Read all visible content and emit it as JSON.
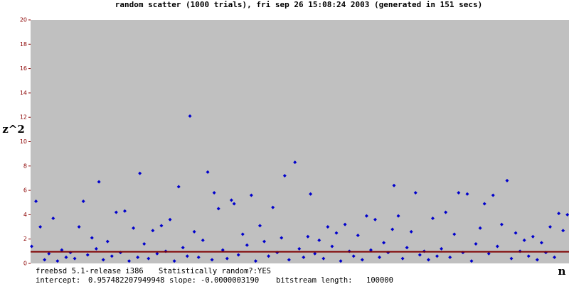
{
  "chart_data": {
    "type": "scatter",
    "title": "random scatter (1000 trials), fri sep 26 15:08:24 2003 (generated in 151 secs)",
    "y_label": "z^2",
    "x_label": "n",
    "xlim": [
      0,
      1000
    ],
    "ylim": [
      0,
      20
    ],
    "yticks": [
      0,
      2,
      4,
      6,
      8,
      10,
      12,
      14,
      16,
      18,
      20
    ],
    "plot_background": "#c0c0c0",
    "series": [
      {
        "color": "#0000cc",
        "x": [
          2,
          10,
          18,
          26,
          34,
          42,
          50,
          58,
          66,
          74,
          82,
          90,
          98,
          106,
          114,
          122,
          127,
          135,
          143,
          151,
          159,
          167,
          175,
          183,
          191,
          199,
          203,
          211,
          219,
          227,
          235,
          243,
          251,
          259,
          267,
          275,
          283,
          291,
          296,
          304,
          312,
          320,
          329,
          337,
          341,
          349,
          357,
          365,
          373,
          378,
          386,
          394,
          402,
          410,
          418,
          426,
          434,
          442,
          450,
          458,
          466,
          472,
          480,
          491,
          499,
          507,
          515,
          520,
          528,
          536,
          544,
          552,
          560,
          568,
          576,
          584,
          592,
          600,
          608,
          616,
          624,
          632,
          640,
          648,
          656,
          664,
          672,
          675,
          683,
          691,
          699,
          707,
          715,
          723,
          731,
          739,
          747,
          755,
          763,
          771,
          779,
          787,
          795,
          803,
          811,
          819,
          827,
          835,
          843,
          851,
          859,
          867,
          875,
          885,
          893,
          901,
          909,
          917,
          925,
          933,
          941,
          949,
          957,
          965,
          973,
          981,
          989,
          997
        ],
        "values": [
          1.4,
          5.1,
          3.0,
          0.3,
          0.8,
          3.7,
          0.2,
          1.1,
          0.5,
          0.9,
          0.4,
          3.0,
          5.1,
          0.7,
          2.1,
          1.2,
          6.7,
          0.3,
          1.8,
          0.6,
          4.2,
          0.9,
          4.3,
          0.2,
          2.9,
          0.5,
          7.4,
          1.6,
          0.4,
          2.7,
          0.8,
          3.1,
          1.0,
          3.6,
          0.2,
          6.3,
          1.3,
          0.6,
          12.1,
          2.6,
          0.5,
          1.9,
          7.5,
          0.3,
          5.8,
          4.5,
          1.1,
          0.4,
          5.2,
          4.9,
          0.7,
          2.4,
          1.5,
          5.6,
          0.2,
          3.1,
          1.8,
          0.6,
          4.6,
          0.9,
          2.1,
          7.2,
          0.3,
          8.3,
          1.2,
          0.5,
          2.2,
          5.7,
          0.8,
          1.9,
          0.4,
          3.0,
          1.4,
          2.5,
          0.2,
          3.2,
          1.0,
          0.6,
          2.3,
          0.3,
          3.9,
          1.1,
          3.6,
          0.5,
          1.7,
          0.9,
          2.8,
          6.4,
          3.9,
          0.4,
          1.3,
          2.6,
          5.8,
          0.7,
          1.0,
          0.3,
          3.7,
          0.6,
          1.2,
          4.2,
          0.5,
          2.4,
          5.8,
          0.9,
          5.7,
          0.2,
          1.6,
          2.9,
          4.9,
          0.8,
          5.6,
          1.4,
          3.2,
          6.8,
          0.4,
          2.5,
          1.0,
          1.9,
          0.6,
          2.2,
          0.3,
          1.7,
          0.9,
          3.0,
          0.5,
          4.1,
          2.7,
          4.0
        ]
      }
    ],
    "regression": {
      "color": "#800000",
      "intercept_label": "intercept:",
      "intercept": 0.957482207949948,
      "slope_label": "slope:",
      "slope": {
        "value": -3.19e-07,
        "label": "-0.0000003190"
      }
    },
    "footer": {
      "system": "freebsd 5.1-release i386",
      "random_label": "Statistically random?:",
      "random_value": "YES",
      "bitstream_label": "bitstream length:",
      "bitstream_length": 100000
    }
  }
}
